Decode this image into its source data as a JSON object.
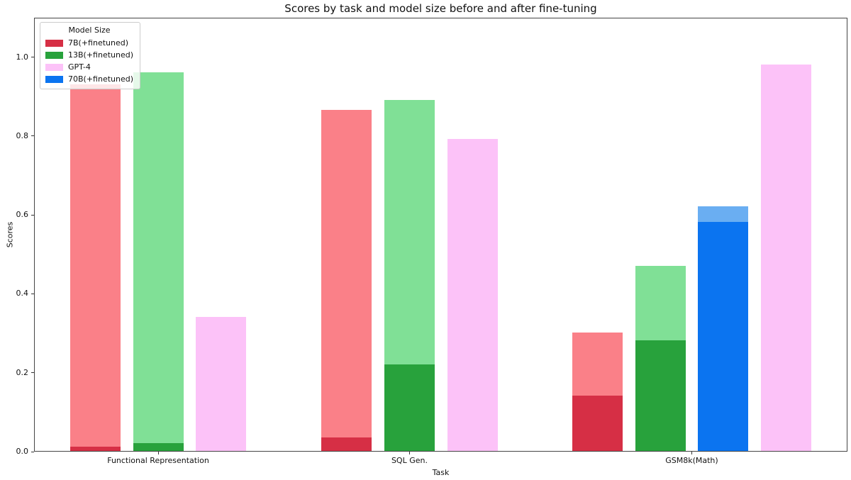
{
  "chart_data": {
    "type": "bar",
    "title": "Scores by task and model size before and after fine-tuning",
    "xlabel": "Task",
    "ylabel": "Scores",
    "ylim": [
      0,
      1.1
    ],
    "yticks": [
      0.0,
      0.2,
      0.4,
      0.6,
      0.8,
      1.0
    ],
    "grid": false,
    "categories": [
      "Functional Representation",
      "SQL Gen.",
      "GSM8k(Math)"
    ],
    "legend": {
      "title": "Model Size",
      "position": "upper left",
      "entries": [
        {
          "label": "7B(+finetuned)",
          "color": "#d62f45"
        },
        {
          "label": "13B(+finetuned)",
          "color": "#28a23c"
        },
        {
          "label": "GPT-4",
          "color": "#fcc2f8"
        },
        {
          "label": "70B(+finetuned)",
          "color": "#0b74f0"
        }
      ]
    },
    "palette": {
      "7B": {
        "solid": "#d62f45",
        "light": "#fa8088"
      },
      "13B": {
        "solid": "#28a23c",
        "light": "#80e096"
      },
      "70B": {
        "solid": "#0b74f0",
        "light": "#6aaef2"
      },
      "GPT-4": {
        "solid": "#fcc2f8",
        "light": "#fcc2f8"
      }
    },
    "bars": [
      {
        "category": "Functional Representation",
        "model": "7B",
        "base": 0.01,
        "finetuned": 0.93
      },
      {
        "category": "Functional Representation",
        "model": "13B",
        "base": 0.02,
        "finetuned": 0.96
      },
      {
        "category": "Functional Representation",
        "model": "GPT-4",
        "score": 0.34
      },
      {
        "category": "SQL Gen.",
        "model": "7B",
        "base": 0.035,
        "finetuned": 0.865
      },
      {
        "category": "SQL Gen.",
        "model": "13B",
        "base": 0.22,
        "finetuned": 0.89
      },
      {
        "category": "SQL Gen.",
        "model": "GPT-4",
        "score": 0.79
      },
      {
        "category": "GSM8k(Math)",
        "model": "7B",
        "base": 0.14,
        "finetuned": 0.3
      },
      {
        "category": "GSM8k(Math)",
        "model": "13B",
        "base": 0.28,
        "finetuned": 0.47
      },
      {
        "category": "GSM8k(Math)",
        "model": "70B",
        "base": 0.58,
        "finetuned": 0.62
      },
      {
        "category": "GSM8k(Math)",
        "model": "GPT-4",
        "score": 0.98
      }
    ]
  }
}
